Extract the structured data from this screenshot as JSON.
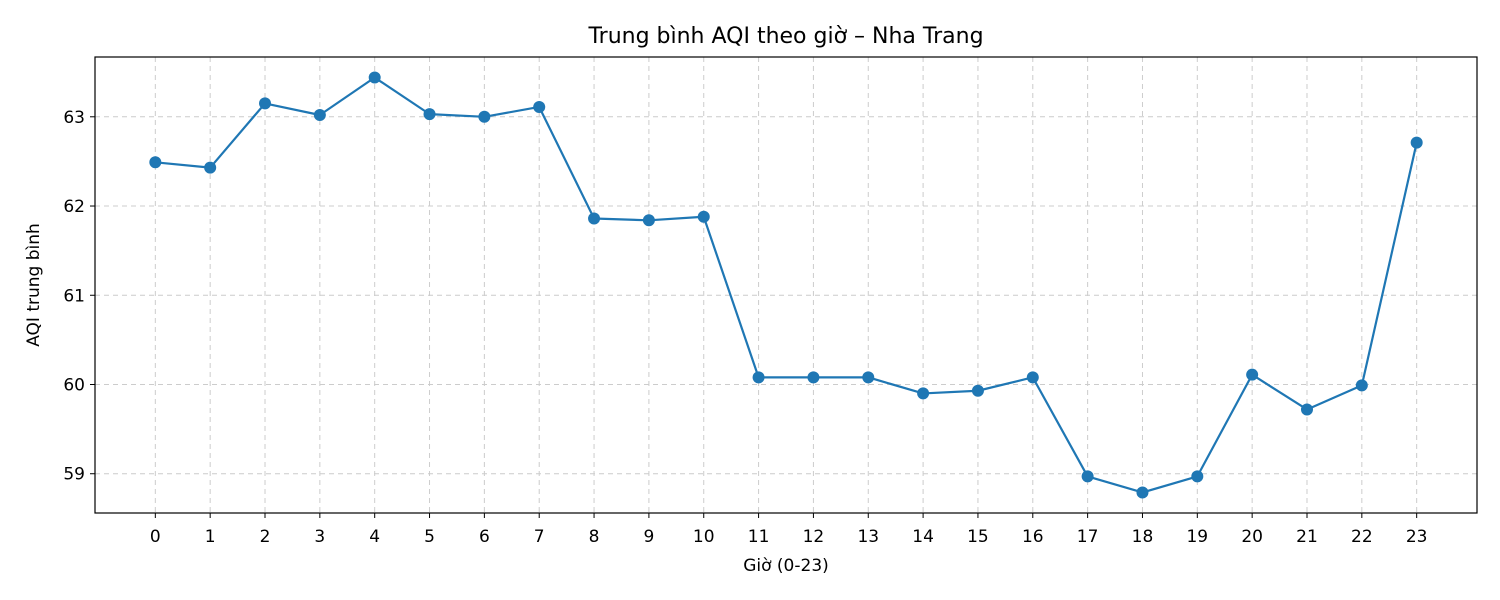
{
  "chart_data": {
    "type": "line",
    "title": "Trung bình AQI theo giờ – Nha Trang",
    "xlabel": "Giờ (0-23)",
    "ylabel": "AQI trung bình",
    "x": [
      0,
      1,
      2,
      3,
      4,
      5,
      6,
      7,
      8,
      9,
      10,
      11,
      12,
      13,
      14,
      15,
      16,
      17,
      18,
      19,
      20,
      21,
      22,
      23
    ],
    "x_tick_labels": [
      "0",
      "1",
      "2",
      "3",
      "4",
      "5",
      "6",
      "7",
      "8",
      "9",
      "10",
      "11",
      "12",
      "13",
      "14",
      "15",
      "16",
      "17",
      "18",
      "19",
      "20",
      "21",
      "22",
      "23"
    ],
    "series": [
      {
        "name": "AQI",
        "values": [
          62.49,
          62.43,
          63.15,
          63.02,
          63.44,
          63.03,
          63.0,
          63.11,
          61.86,
          61.84,
          61.88,
          60.08,
          60.08,
          60.08,
          59.9,
          59.93,
          60.08,
          58.97,
          58.79,
          58.97,
          60.11,
          59.72,
          59.99,
          62.71
        ]
      }
    ],
    "xlim": [
      -1.1,
      24.1
    ],
    "ylim": [
      58.56,
      63.67
    ],
    "y_ticks": [
      59,
      60,
      61,
      62,
      63
    ],
    "y_tick_labels": [
      "59",
      "60",
      "61",
      "62",
      "63"
    ],
    "grid": true,
    "line_color": "#1f77b4",
    "marker": "circle"
  }
}
